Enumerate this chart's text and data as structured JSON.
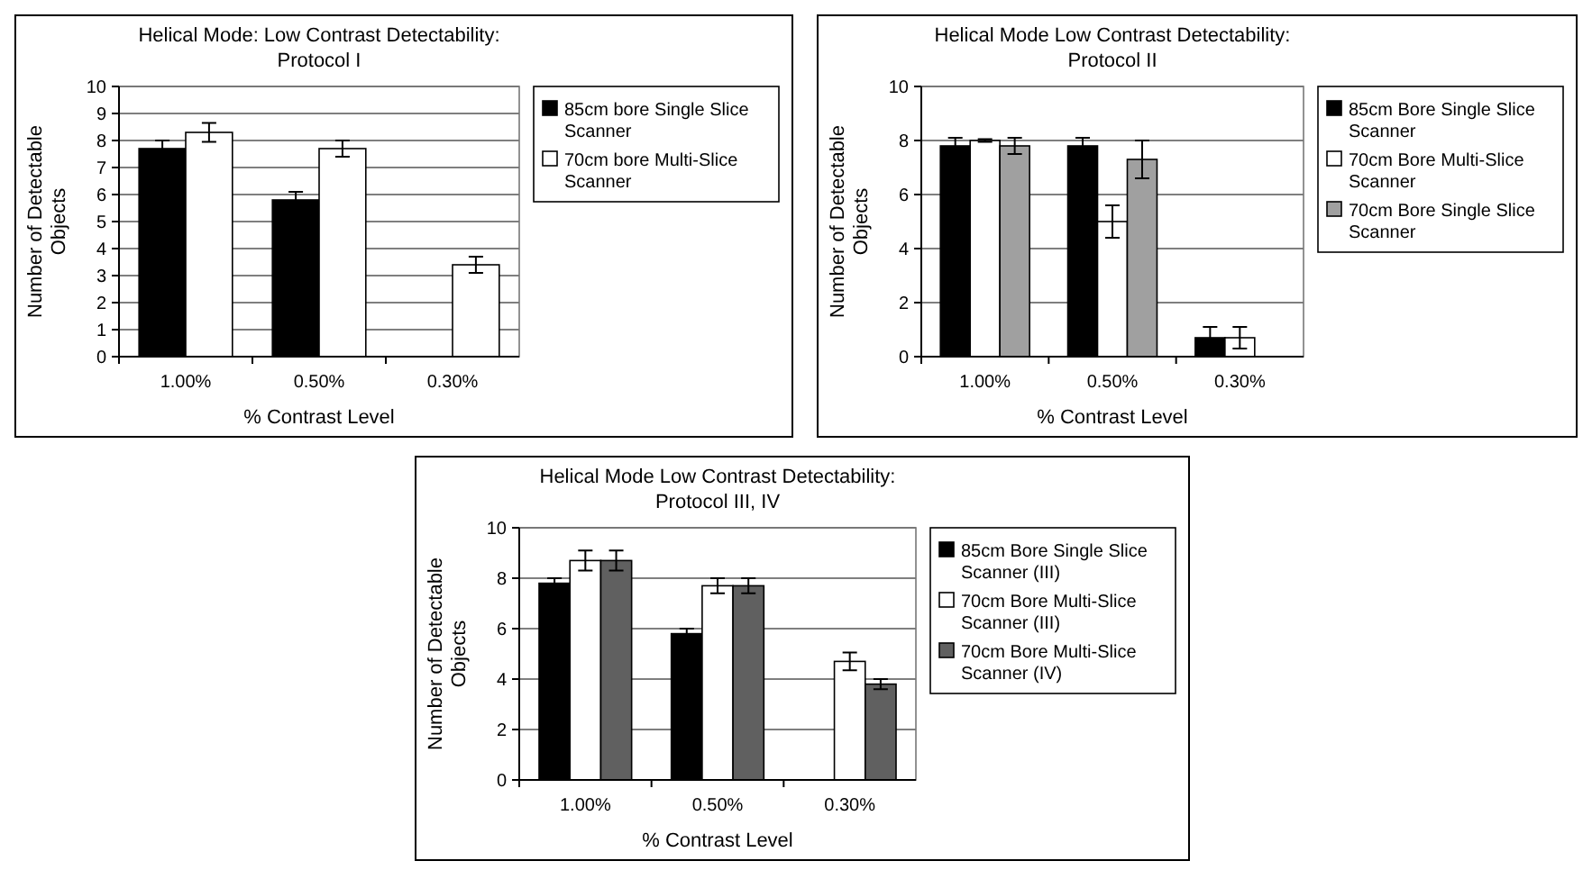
{
  "chart_data": [
    {
      "type": "bar",
      "title": "Helical Mode: Low Contrast Detectability:",
      "subtitle": "Protocol I",
      "xlabel": "% Contrast Level",
      "ylabel": "Number of Detectable Objects",
      "categories": [
        "1.00%",
        "0.50%",
        "0.30%"
      ],
      "series": [
        {
          "name": "85cm bore Single Slice Scanner",
          "color": "#000000",
          "values": [
            7.7,
            5.8,
            null
          ],
          "errors": [
            0.3,
            0.3,
            null
          ]
        },
        {
          "name": "70cm bore Multi-Slice Scanner",
          "color": "#ffffff",
          "values": [
            8.3,
            7.7,
            3.4
          ],
          "errors": [
            0.35,
            0.3,
            0.3
          ]
        }
      ],
      "ylim": [
        0,
        10
      ],
      "yticks": [
        0,
        1,
        2,
        3,
        4,
        5,
        6,
        7,
        8,
        9,
        10
      ],
      "grid": "y",
      "legend": "right"
    },
    {
      "type": "bar",
      "title": "Helical Mode Low Contrast Detectability:",
      "subtitle": "Protocol II",
      "xlabel": "% Contrast Level",
      "ylabel": "Number of Detectable Objects",
      "categories": [
        "1.00%",
        "0.50%",
        "0.30%"
      ],
      "series": [
        {
          "name": "85cm Bore Single Slice Scanner",
          "color": "#000000",
          "values": [
            7.8,
            7.8,
            0.7
          ],
          "errors": [
            0.3,
            0.3,
            0.4
          ]
        },
        {
          "name": "70cm Bore Multi-Slice Scanner",
          "color": "#ffffff",
          "values": [
            8.0,
            5.0,
            0.7
          ],
          "errors": [
            0.05,
            0.6,
            0.4
          ]
        },
        {
          "name": "70cm Bore Single Slice Scanner",
          "color": "#a0a0a0",
          "values": [
            7.8,
            7.3,
            null
          ],
          "errors": [
            0.3,
            0.7,
            null
          ]
        }
      ],
      "ylim": [
        0,
        10
      ],
      "yticks": [
        0,
        2,
        4,
        6,
        8,
        10
      ],
      "grid": "y",
      "legend": "right"
    },
    {
      "type": "bar",
      "title": "Helical Mode Low Contrast Detectability:",
      "subtitle": "Protocol III, IV",
      "xlabel": "% Contrast Level",
      "ylabel": "Number of Detectable Objects",
      "categories": [
        "1.00%",
        "0.50%",
        "0.30%"
      ],
      "series": [
        {
          "name": "85cm Bore Single Slice Scanner (III)",
          "color": "#000000",
          "values": [
            7.8,
            5.8,
            null
          ],
          "errors": [
            0.2,
            0.2,
            null
          ]
        },
        {
          "name": "70cm Bore Multi-Slice Scanner (III)",
          "color": "#ffffff",
          "values": [
            8.7,
            7.7,
            4.7
          ],
          "errors": [
            0.4,
            0.3,
            0.35
          ]
        },
        {
          "name": "70cm Bore Multi-Slice Scanner (IV)",
          "color": "#606060",
          "values": [
            8.7,
            7.7,
            3.8
          ],
          "errors": [
            0.4,
            0.3,
            0.2
          ]
        }
      ],
      "ylim": [
        0,
        10
      ],
      "yticks": [
        0,
        2,
        4,
        6,
        8,
        10
      ],
      "grid": "y",
      "legend": "right"
    }
  ]
}
